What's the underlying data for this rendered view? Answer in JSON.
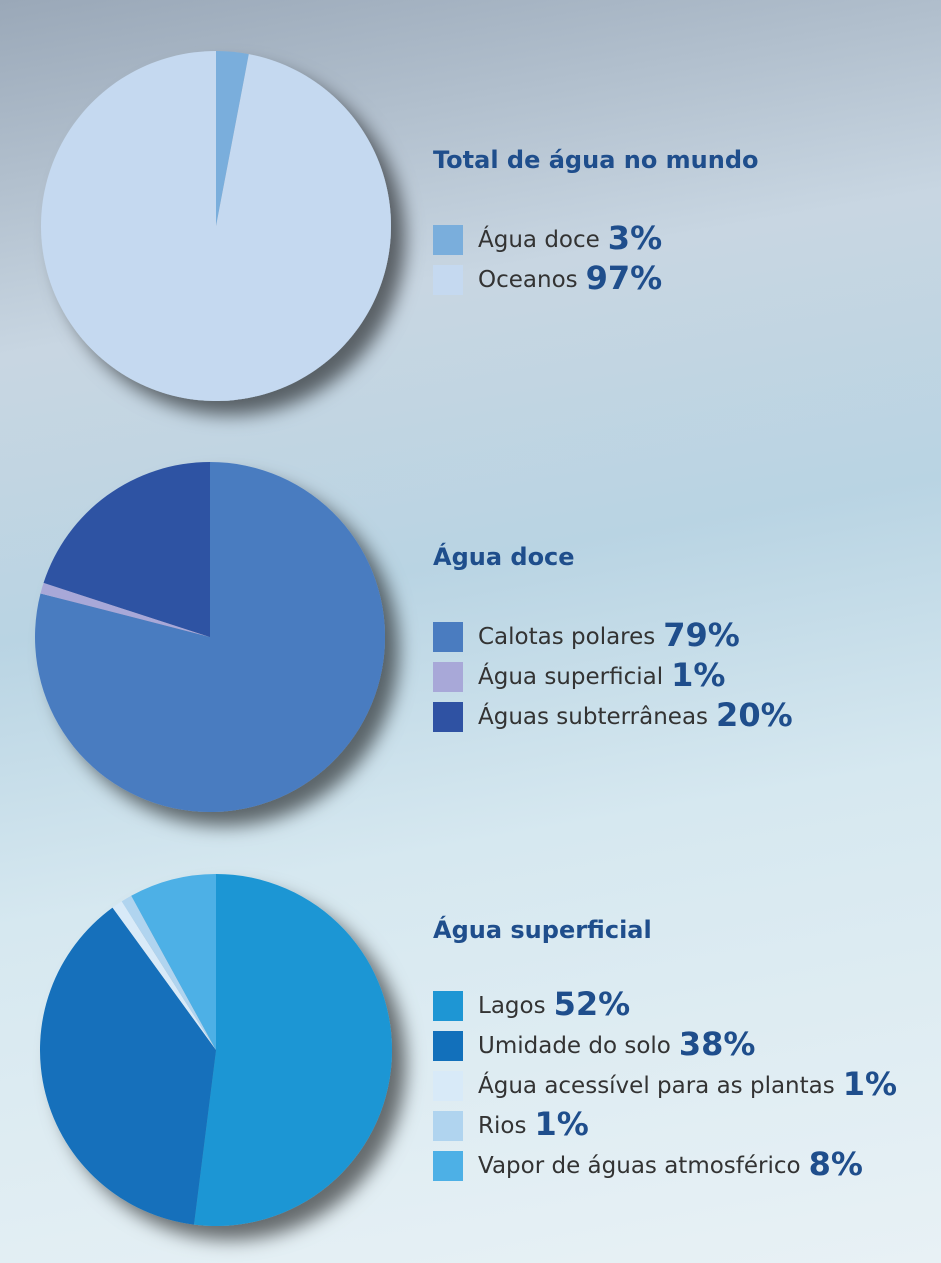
{
  "chart_data": [
    {
      "type": "pie",
      "title": "Total de água no mundo",
      "categories": [
        "Água doce",
        "Oceanos"
      ],
      "values": [
        3,
        97
      ],
      "value_labels": [
        "3%",
        "97%"
      ],
      "colors": [
        "#7aaedc",
        "#c5d9f0"
      ]
    },
    {
      "type": "pie",
      "title": "Água doce",
      "categories": [
        "Calotas polares",
        "Água superficial",
        "Águas subterrâneas"
      ],
      "values": [
        79,
        1,
        20
      ],
      "value_labels": [
        "79%",
        "1%",
        "20%"
      ],
      "colors": [
        "#4a7cc0",
        "#a8a8d8",
        "#2f52a3"
      ]
    },
    {
      "type": "pie",
      "title": "Água superficial",
      "categories": [
        "Lagos",
        "Umidade do solo",
        "Água acessível para as plantas",
        "Rios",
        "Vapor de águas atmosférico"
      ],
      "values": [
        52,
        38,
        1,
        1,
        8
      ],
      "value_labels": [
        "52%",
        "38%",
        "1%",
        "1%",
        "8%"
      ],
      "colors": [
        "#1e96d4",
        "#1270bb",
        "#d8eaf8",
        "#b0d4ef",
        "#4db0e6"
      ]
    }
  ]
}
